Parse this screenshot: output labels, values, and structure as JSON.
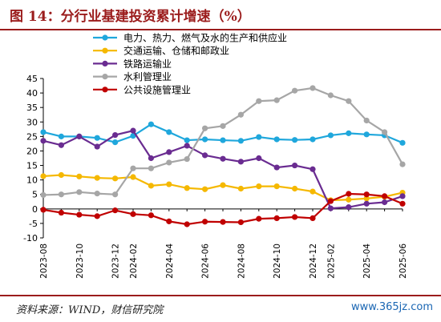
{
  "page": {
    "title": "图 14：分行业基建投资累计增速（%）",
    "source": "资料来源：WIND，财信研究院",
    "watermark": "www.365jz.com"
  },
  "chart_data": {
    "type": "line",
    "title": "",
    "xlabel": "",
    "ylabel": "",
    "ylim": [
      -10,
      45
    ],
    "yticks": [
      -10,
      -5,
      0,
      5,
      10,
      15,
      20,
      25,
      30,
      35,
      40,
      45
    ],
    "grid": false,
    "legend_position": "top-center",
    "x": [
      "2023-08",
      "2023-09",
      "2023-10",
      "2023-11",
      "2023-12",
      "2024-02",
      "2024-03",
      "2024-04",
      "2024-05",
      "2024-06",
      "2024-07",
      "2024-08",
      "2024-09",
      "2024-10",
      "2024-11",
      "2024-12",
      "2025-02",
      "2025-03",
      "2025-04",
      "2025-05",
      "2025-06"
    ],
    "x_tick_labels": [
      "2023-08",
      "2023-10",
      "2023-12",
      "2024-02",
      "2024-04",
      "2024-06",
      "2024-08",
      "2024-10",
      "2024-12",
      "2025-02",
      "2025-04",
      "2025-06"
    ],
    "series": [
      {
        "name": "电力、热力、燃气及水的生产和供应业",
        "color": "#1fa7dc",
        "values": [
          26.5,
          25.0,
          25.0,
          24.5,
          23.0,
          25.2,
          29.2,
          26.5,
          23.7,
          24.0,
          23.7,
          23.5,
          24.8,
          24.0,
          23.8,
          24.0,
          25.4,
          26.1,
          25.7,
          25.4,
          22.8
        ]
      },
      {
        "name": "交通运输、仓储和邮政业",
        "color": "#f5b800",
        "values": [
          11.3,
          11.7,
          11.2,
          10.7,
          10.5,
          11.0,
          8.0,
          8.5,
          7.2,
          6.8,
          8.2,
          7.0,
          7.8,
          7.8,
          7.0,
          6.0,
          3.0,
          3.2,
          3.6,
          4.2,
          5.6
        ]
      },
      {
        "name": "铁路运输业",
        "color": "#6a2c91",
        "values": [
          23.5,
          22.0,
          25.0,
          21.5,
          25.5,
          27.0,
          17.5,
          19.6,
          21.8,
          18.5,
          17.3,
          16.3,
          17.5,
          14.3,
          15.0,
          13.7,
          0.2,
          0.6,
          1.8,
          2.3,
          4.4
        ]
      },
      {
        "name": "水利管理业",
        "color": "#a6a6a6",
        "values": [
          4.8,
          5.0,
          5.8,
          5.3,
          5.0,
          14.0,
          14.0,
          16.0,
          17.2,
          27.8,
          28.6,
          32.5,
          37.2,
          37.5,
          40.8,
          41.7,
          39.2,
          37.2,
          30.5,
          26.5,
          15.4
        ]
      },
      {
        "name": "公共设施管理业",
        "color": "#c00000",
        "values": [
          -0.3,
          -1.3,
          -2.0,
          -2.5,
          -0.5,
          -1.8,
          -2.2,
          -4.3,
          -5.3,
          -4.4,
          -4.5,
          -4.6,
          -3.4,
          -3.2,
          -2.8,
          -3.2,
          2.7,
          5.2,
          5.0,
          4.4,
          1.8
        ]
      }
    ]
  }
}
